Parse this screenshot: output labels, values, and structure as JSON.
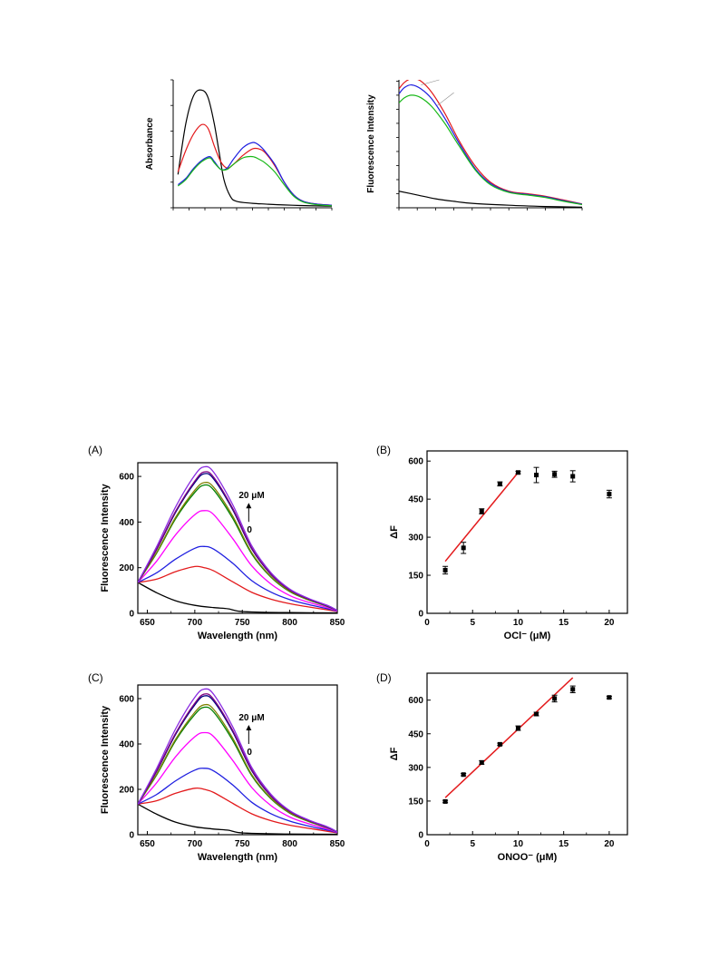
{
  "chart_data": [
    {
      "id": "uv",
      "type": "line",
      "title": "",
      "xlabel": "",
      "ylabel": "Absorbance",
      "xlim": [
        0,
        10
      ],
      "ylim": [
        0,
        10
      ],
      "xticks": [
        0,
        1,
        2,
        3,
        4,
        5,
        6,
        7,
        8,
        9,
        10
      ],
      "yticks": [
        0,
        2,
        4,
        6,
        8,
        10
      ],
      "series": [
        {
          "color": "#000000",
          "x": [
            0.3,
            0.8,
            1.3,
            1.8,
            2.2,
            2.6,
            2.9,
            3.2,
            3.6,
            4.0,
            5,
            6,
            7,
            8,
            9,
            10
          ],
          "y": [
            2.6,
            6.6,
            8.8,
            9.2,
            8.6,
            6.5,
            4.3,
            2.2,
            0.9,
            0.5,
            0.35,
            0.28,
            0.22,
            0.18,
            0.15,
            0.12
          ]
        },
        {
          "color": "#e31a1c",
          "x": [
            0.3,
            0.8,
            1.3,
            1.8,
            2.2,
            2.6,
            3.0,
            3.4,
            3.8,
            4.4,
            5.0,
            5.4,
            5.8,
            6.4,
            7.0,
            7.6,
            8.2,
            9,
            10
          ],
          "y": [
            2.8,
            4.5,
            5.8,
            6.5,
            6.2,
            4.8,
            3.6,
            3.1,
            3.4,
            4.1,
            4.6,
            4.6,
            4.3,
            3.3,
            2.0,
            1.0,
            0.5,
            0.3,
            0.2
          ]
        },
        {
          "color": "#1f1fe0",
          "x": [
            0.3,
            0.8,
            1.3,
            1.8,
            2.3,
            2.6,
            3.0,
            3.4,
            3.8,
            4.4,
            5.0,
            5.4,
            5.8,
            6.4,
            7.0,
            7.6,
            8.2,
            9,
            10
          ],
          "y": [
            1.8,
            2.3,
            3.1,
            3.7,
            4.0,
            3.6,
            3.0,
            3.1,
            3.8,
            4.7,
            5.1,
            4.9,
            4.4,
            3.4,
            2.0,
            1.0,
            0.5,
            0.3,
            0.2
          ]
        },
        {
          "color": "#18b818",
          "x": [
            0.3,
            0.8,
            1.3,
            1.8,
            2.3,
            2.6,
            3.0,
            3.4,
            3.8,
            4.4,
            5.0,
            5.4,
            5.8,
            6.4,
            7.0,
            7.6,
            8.2,
            9,
            10
          ],
          "y": [
            1.7,
            2.2,
            3.0,
            3.6,
            3.9,
            3.5,
            3.0,
            3.0,
            3.4,
            3.9,
            4.0,
            3.8,
            3.5,
            2.8,
            1.8,
            0.9,
            0.45,
            0.25,
            0.15
          ]
        }
      ]
    },
    {
      "id": "fl",
      "type": "line",
      "title": "",
      "xlabel": "",
      "ylabel": "Fluorescence Intensity",
      "xlim": [
        0,
        10
      ],
      "ylim": [
        0,
        10
      ],
      "xticks": [
        0,
        1,
        2,
        3,
        4,
        5,
        6,
        7,
        8,
        9,
        10
      ],
      "yticks": [
        0,
        1.1,
        2.2,
        3.3,
        4.4,
        5.5,
        6.6,
        7.7,
        8.8,
        9.9
      ],
      "series": [
        {
          "color": "#e31a1c",
          "x": [
            0,
            0.3,
            0.7,
            1.2,
            1.8,
            2.5,
            3.3,
            4.2,
            5.0,
            6.0,
            7.0,
            8.0,
            9.0,
            10
          ],
          "y": [
            9.3,
            9.8,
            10.1,
            9.9,
            9.0,
            7.4,
            5.2,
            3.2,
            2.0,
            1.3,
            1.1,
            0.9,
            0.6,
            0.3
          ]
        },
        {
          "color": "#1f1fe0",
          "x": [
            0,
            0.3,
            0.7,
            1.2,
            1.8,
            2.5,
            3.3,
            4.2,
            5.0,
            6.0,
            7.0,
            8.0,
            9.0,
            10
          ],
          "y": [
            8.9,
            9.4,
            9.6,
            9.3,
            8.5,
            7.0,
            5.0,
            3.0,
            1.9,
            1.25,
            1.05,
            0.85,
            0.55,
            0.28
          ]
        },
        {
          "color": "#18b818",
          "x": [
            0,
            0.3,
            0.7,
            1.2,
            1.8,
            2.5,
            3.3,
            4.2,
            5.0,
            6.0,
            7.0,
            8.0,
            9.0,
            10
          ],
          "y": [
            8.2,
            8.6,
            8.8,
            8.6,
            7.9,
            6.6,
            4.8,
            2.9,
            1.8,
            1.2,
            1.0,
            0.8,
            0.5,
            0.25
          ]
        },
        {
          "color": "#000000",
          "x": [
            0,
            1,
            2,
            3,
            4,
            6,
            8,
            10
          ],
          "y": [
            1.3,
            1.0,
            0.7,
            0.5,
            0.35,
            0.2,
            0.1,
            0.05
          ]
        }
      ]
    },
    {
      "id": "A",
      "type": "line",
      "panel_label": "(A)",
      "xlabel": "Wavelength (nm)",
      "ylabel": "Fluorescence Intensity",
      "xlim": [
        640,
        850
      ],
      "ylim": [
        0,
        660
      ],
      "xticks": [
        650,
        700,
        750,
        800,
        850
      ],
      "yticks": [
        0,
        200,
        400,
        600
      ],
      "annotation": {
        "top": "20 μM",
        "bottom": "0",
        "anchor": [
          752,
          520
        ]
      },
      "series": [
        {
          "color": "#000000",
          "x": [
            640,
            660,
            680,
            700,
            720,
            735,
            745,
            760,
            800,
            850
          ],
          "y": [
            135,
            90,
            55,
            35,
            25,
            20,
            10,
            6,
            3,
            2
          ]
        },
        {
          "color": "#e31a1c",
          "x": [
            640,
            660,
            680,
            700,
            710,
            720,
            740,
            760,
            780,
            800,
            820,
            840,
            850
          ],
          "y": [
            135,
            150,
            183,
            205,
            200,
            186,
            138,
            92,
            62,
            42,
            28,
            15,
            8
          ]
        },
        {
          "color": "#1f1fe0",
          "x": [
            640,
            660,
            680,
            700,
            710,
            720,
            740,
            760,
            780,
            800,
            820,
            840,
            850
          ],
          "y": [
            135,
            178,
            238,
            285,
            293,
            281,
            219,
            143,
            93,
            60,
            38,
            20,
            9
          ]
        },
        {
          "color": "#ff00ff",
          "x": [
            640,
            660,
            680,
            700,
            710,
            720,
            740,
            760,
            780,
            800,
            820,
            840,
            850
          ],
          "y": [
            135,
            230,
            345,
            432,
            450,
            432,
            327,
            208,
            129,
            78,
            48,
            25,
            10
          ]
        },
        {
          "color": "#008000",
          "x": [
            640,
            660,
            680,
            700,
            710,
            720,
            740,
            760,
            780,
            800,
            820,
            840,
            850
          ],
          "y": [
            135,
            265,
            416,
            530,
            562,
            540,
            415,
            260,
            159,
            95,
            58,
            30,
            12
          ]
        },
        {
          "color": "#808000",
          "x": [
            640,
            660,
            680,
            700,
            710,
            720,
            740,
            760,
            780,
            800,
            820,
            840,
            850
          ],
          "y": [
            135,
            268,
            422,
            540,
            573,
            552,
            425,
            265,
            162,
            97,
            59,
            31,
            12
          ]
        },
        {
          "color": "#000080",
          "x": [
            640,
            660,
            680,
            700,
            710,
            720,
            740,
            760,
            780,
            800,
            820,
            840,
            850
          ],
          "y": [
            135,
            281,
            444,
            573,
            612,
            588,
            453,
            282,
            171,
            102,
            62,
            32,
            12
          ]
        },
        {
          "color": "#800080",
          "x": [
            640,
            660,
            680,
            700,
            710,
            720,
            740,
            760,
            780,
            800,
            820,
            840,
            850
          ],
          "y": [
            135,
            284,
            449,
            580,
            620,
            596,
            459,
            286,
            173,
            103,
            63,
            33,
            12
          ]
        },
        {
          "color": "#8a2be2",
          "x": [
            640,
            660,
            680,
            700,
            710,
            720,
            740,
            760,
            780,
            800,
            820,
            840,
            850
          ],
          "y": [
            135,
            294,
            468,
            606,
            642,
            618,
            475,
            296,
            179,
            106,
            65,
            34,
            13
          ]
        }
      ]
    },
    {
      "id": "B",
      "type": "scatter",
      "panel_label": "(B)",
      "xlabel": "OCl⁻ (μM)",
      "ylabel": "ΔF",
      "xlim": [
        0,
        22
      ],
      "ylim": [
        0,
        640
      ],
      "xticks": [
        0,
        5,
        10,
        15,
        20
      ],
      "yticks": [
        0,
        150,
        300,
        450,
        600
      ],
      "points": [
        {
          "x": 2,
          "y": 170,
          "err": 15
        },
        {
          "x": 4,
          "y": 258,
          "err": 22
        },
        {
          "x": 6,
          "y": 402,
          "err": 10
        },
        {
          "x": 8,
          "y": 510,
          "err": 8
        },
        {
          "x": 10,
          "y": 555,
          "err": 5
        },
        {
          "x": 12,
          "y": 545,
          "err": 30
        },
        {
          "x": 14,
          "y": 548,
          "err": 12
        },
        {
          "x": 16,
          "y": 540,
          "err": 22
        },
        {
          "x": 20,
          "y": 470,
          "err": 15
        }
      ],
      "fit": {
        "color": "#e31a1c",
        "x": [
          2,
          10
        ],
        "y": [
          205,
          555
        ]
      }
    },
    {
      "id": "C",
      "type": "line",
      "panel_label": "(C)",
      "xlabel": "Wavelength (nm)",
      "ylabel": "Fluorescence Intensity",
      "xlim": [
        640,
        850
      ],
      "ylim": [
        0,
        660
      ],
      "xticks": [
        650,
        700,
        750,
        800,
        850
      ],
      "yticks": [
        0,
        200,
        400,
        600
      ],
      "annotation": {
        "top": "20 μM",
        "bottom": "0",
        "anchor": [
          752,
          520
        ]
      },
      "series": [
        {
          "color": "#000000",
          "x": [
            640,
            660,
            680,
            700,
            720,
            735,
            745,
            760,
            800,
            850
          ],
          "y": [
            135,
            90,
            55,
            35,
            25,
            20,
            10,
            6,
            3,
            2
          ]
        },
        {
          "color": "#e31a1c",
          "x": [
            640,
            660,
            680,
            700,
            710,
            720,
            740,
            760,
            780,
            800,
            820,
            840,
            850
          ],
          "y": [
            135,
            150,
            183,
            205,
            200,
            186,
            138,
            92,
            62,
            42,
            28,
            15,
            8
          ]
        },
        {
          "color": "#1f1fe0",
          "x": [
            640,
            660,
            680,
            700,
            710,
            720,
            740,
            760,
            780,
            800,
            820,
            840,
            850
          ],
          "y": [
            135,
            178,
            238,
            285,
            293,
            281,
            219,
            143,
            93,
            60,
            38,
            20,
            9
          ]
        },
        {
          "color": "#ff00ff",
          "x": [
            640,
            660,
            680,
            700,
            710,
            720,
            740,
            760,
            780,
            800,
            820,
            840,
            850
          ],
          "y": [
            135,
            230,
            345,
            432,
            450,
            432,
            327,
            208,
            129,
            78,
            48,
            25,
            10
          ]
        },
        {
          "color": "#008000",
          "x": [
            640,
            660,
            680,
            700,
            710,
            720,
            740,
            760,
            780,
            800,
            820,
            840,
            850
          ],
          "y": [
            135,
            265,
            416,
            530,
            562,
            540,
            415,
            260,
            159,
            95,
            58,
            30,
            12
          ]
        },
        {
          "color": "#808000",
          "x": [
            640,
            660,
            680,
            700,
            710,
            720,
            740,
            760,
            780,
            800,
            820,
            840,
            850
          ],
          "y": [
            135,
            268,
            422,
            540,
            573,
            552,
            425,
            265,
            162,
            97,
            59,
            31,
            12
          ]
        },
        {
          "color": "#000080",
          "x": [
            640,
            660,
            680,
            700,
            710,
            720,
            740,
            760,
            780,
            800,
            820,
            840,
            850
          ],
          "y": [
            135,
            281,
            444,
            573,
            612,
            588,
            453,
            282,
            171,
            102,
            62,
            32,
            12
          ]
        },
        {
          "color": "#800080",
          "x": [
            640,
            660,
            680,
            700,
            710,
            720,
            740,
            760,
            780,
            800,
            820,
            840,
            850
          ],
          "y": [
            135,
            284,
            449,
            580,
            620,
            596,
            459,
            286,
            173,
            103,
            63,
            33,
            12
          ]
        },
        {
          "color": "#8a2be2",
          "x": [
            640,
            660,
            680,
            700,
            710,
            720,
            740,
            760,
            780,
            800,
            820,
            840,
            850
          ],
          "y": [
            135,
            294,
            468,
            606,
            642,
            618,
            475,
            296,
            179,
            106,
            65,
            34,
            13
          ]
        }
      ]
    },
    {
      "id": "D",
      "type": "scatter",
      "panel_label": "(D)",
      "xlabel": "ONOO⁻ (μM)",
      "ylabel": "ΔF",
      "xlim": [
        0,
        22
      ],
      "ylim": [
        0,
        720
      ],
      "xticks": [
        0,
        5,
        10,
        15,
        20
      ],
      "yticks": [
        0,
        150,
        300,
        450,
        600
      ],
      "points": [
        {
          "x": 2,
          "y": 148,
          "err": 5
        },
        {
          "x": 4,
          "y": 268,
          "err": 5
        },
        {
          "x": 6,
          "y": 322,
          "err": 8
        },
        {
          "x": 8,
          "y": 403,
          "err": 5
        },
        {
          "x": 10,
          "y": 475,
          "err": 10
        },
        {
          "x": 12,
          "y": 538,
          "err": 8
        },
        {
          "x": 14,
          "y": 607,
          "err": 15
        },
        {
          "x": 16,
          "y": 648,
          "err": 15
        },
        {
          "x": 20,
          "y": 612,
          "err": 5
        }
      ],
      "fit": {
        "color": "#e31a1c",
        "x": [
          2,
          16
        ],
        "y": [
          165,
          700
        ]
      }
    }
  ]
}
